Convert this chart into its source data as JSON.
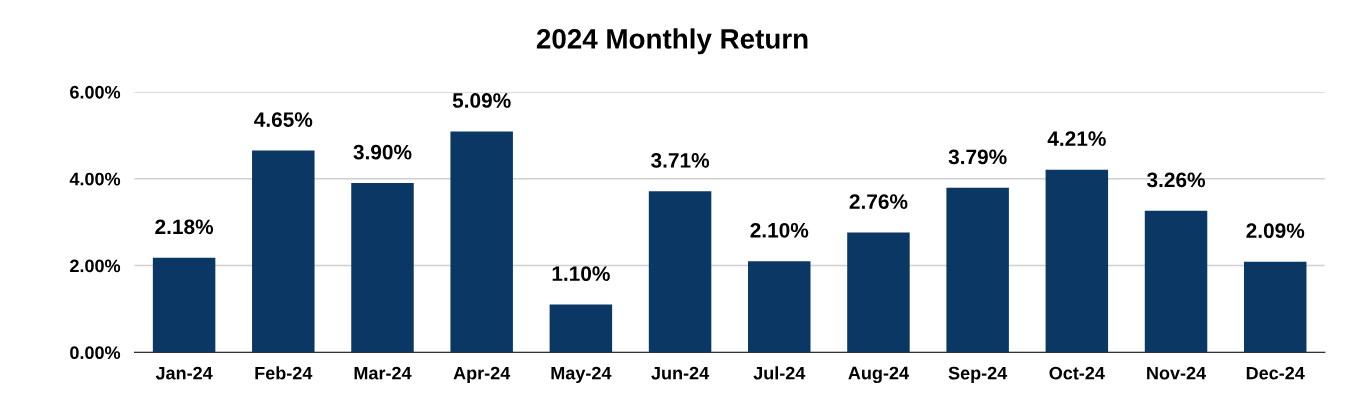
{
  "chart_data": {
    "type": "bar",
    "title": "2024 Monthly Return",
    "categories": [
      "Jan-24",
      "Feb-24",
      "Mar-24",
      "Apr-24",
      "May-24",
      "Jun-24",
      "Jul-24",
      "Aug-24",
      "Sep-24",
      "Oct-24",
      "Nov-24",
      "Dec-24"
    ],
    "values": [
      2.18,
      4.65,
      3.9,
      5.09,
      1.1,
      3.71,
      2.1,
      2.76,
      3.79,
      4.21,
      3.26,
      2.09
    ],
    "value_labels": [
      "2.18%",
      "4.65%",
      "3.90%",
      "5.09%",
      "1.10%",
      "3.71%",
      "2.10%",
      "2.76%",
      "3.79%",
      "4.21%",
      "3.26%",
      "2.09%"
    ],
    "color": "#0b3764",
    "ylim": [
      0,
      6
    ],
    "yticks": [
      {
        "value": 0,
        "label": "0.00%"
      },
      {
        "value": 2,
        "label": "2.00%"
      },
      {
        "value": 4,
        "label": "4.00%"
      },
      {
        "value": 6,
        "label": "6.00%"
      }
    ],
    "grid": "y",
    "legend": false
  }
}
